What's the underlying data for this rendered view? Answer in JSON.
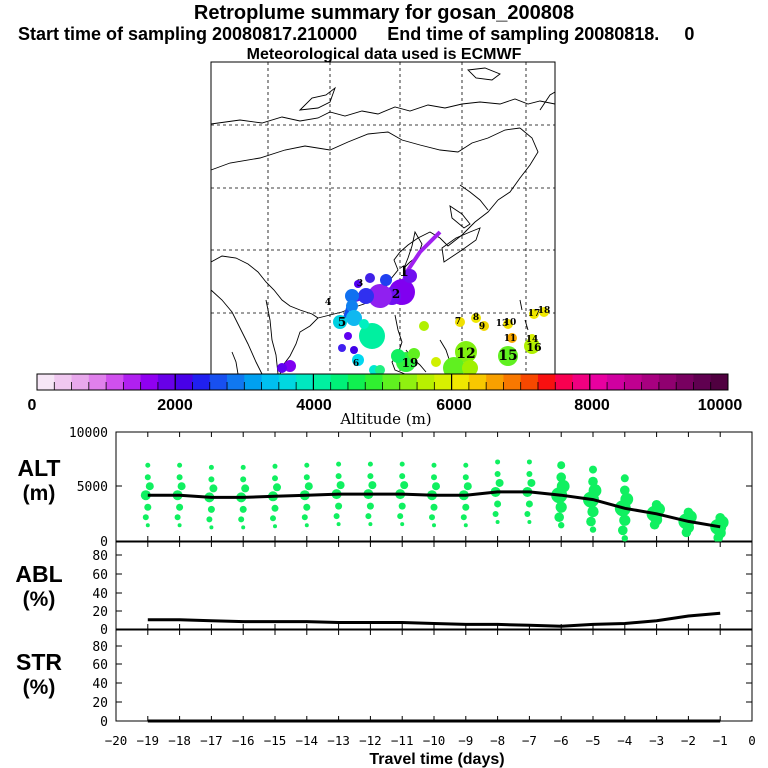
{
  "header": {
    "title": "Retroplume summary for gosan_200808",
    "start_label": "Start time of sampling 20080817.210000",
    "end_label": "End time of sampling 20080818.",
    "end_suffix": "0",
    "met_label": "Meteorological data used is ECMWF"
  },
  "map": {
    "labels": [
      {
        "t": "1"
      },
      {
        "t": "2"
      },
      {
        "t": "3"
      },
      {
        "t": "4"
      },
      {
        "t": "5"
      },
      {
        "t": "6"
      },
      {
        "t": "7"
      },
      {
        "t": "8"
      },
      {
        "t": "9"
      },
      {
        "t": "10"
      },
      {
        "t": "11"
      },
      {
        "t": "12"
      },
      {
        "t": "13"
      },
      {
        "t": "14"
      },
      {
        "t": "15"
      },
      {
        "t": "16"
      },
      {
        "t": "17"
      },
      {
        "t": "18"
      },
      {
        "t": "19"
      }
    ]
  },
  "colorbar": {
    "ticks": [
      "0",
      "2000",
      "4000",
      "6000",
      "8000",
      "10000"
    ],
    "title": "Altitude  (m)",
    "colors": [
      "#f6e6f6",
      "#f0c8f0",
      "#e8a8ec",
      "#e080ec",
      "#d050ee",
      "#b020f0",
      "#9000f0",
      "#6800e8",
      "#4800e8",
      "#2020f0",
      "#1850f0",
      "#1078f0",
      "#00a0f0",
      "#00c0f0",
      "#00d8e0",
      "#00e8c0",
      "#00f0a0",
      "#00f078",
      "#10f050",
      "#30f030",
      "#60f020",
      "#90f010",
      "#b8f000",
      "#d8f000",
      "#f0e800",
      "#f8c800",
      "#f8a000",
      "#f87800",
      "#f84800",
      "#f81010",
      "#f80050",
      "#f00080",
      "#e800a0",
      "#d000a0",
      "#c00090",
      "#a80080",
      "#900070",
      "#780060",
      "#600050",
      "#500040"
    ]
  },
  "chart_data": [
    {
      "type": "line",
      "name": "ALT",
      "ylabel": "ALT\n(m)",
      "ylim": [
        0,
        10000
      ],
      "yticks": [
        "10000",
        "5000",
        "0"
      ],
      "x": [
        -19,
        -18,
        -17,
        -16,
        -15,
        -14,
        -13,
        -12,
        -11,
        -10,
        -9,
        -8,
        -7,
        -6,
        -5,
        -4,
        -3,
        -2,
        -1
      ],
      "values": [
        4200,
        4200,
        4000,
        4000,
        4100,
        4200,
        4300,
        4300,
        4300,
        4200,
        4200,
        4500,
        4500,
        4200,
        3800,
        3000,
        2500,
        1800,
        1300
      ]
    },
    {
      "type": "line",
      "name": "ABL",
      "ylabel": "ABL\n(%)",
      "ylim": [
        0,
        90
      ],
      "yticks": [
        "80",
        "60",
        "40",
        "20",
        "0"
      ],
      "x": [
        -19,
        -18,
        -17,
        -16,
        -15,
        -14,
        -13,
        -12,
        -11,
        -10,
        -9,
        -8,
        -7,
        -6,
        -5,
        -4,
        -3,
        -2,
        -1
      ],
      "values": [
        10,
        10,
        9,
        8,
        8,
        8,
        7,
        7,
        7,
        6,
        5,
        5,
        4,
        3,
        5,
        6,
        9,
        14,
        17
      ]
    },
    {
      "type": "line",
      "name": "STR",
      "ylabel": "STR\n(%)",
      "ylim": [
        0,
        90
      ],
      "yticks": [
        "80",
        "60",
        "40",
        "20",
        "0"
      ],
      "x": [
        -19,
        -18,
        -17,
        -16,
        -15,
        -14,
        -13,
        -12,
        -11,
        -10,
        -9,
        -8,
        -7,
        -6,
        -5,
        -4,
        -3,
        -2,
        -1
      ],
      "values": [
        0,
        0,
        0,
        0,
        0,
        0,
        0,
        0,
        0,
        0,
        0,
        0,
        0,
        0,
        0,
        0,
        0,
        0,
        0
      ]
    }
  ],
  "xaxis": {
    "label": "Travel time (days)",
    "ticks": [
      "−20",
      "−19",
      "−18",
      "−17",
      "−16",
      "−15",
      "−14",
      "−13",
      "−12",
      "−11",
      "−10",
      "−9",
      "−8",
      "−7",
      "−6",
      "−5",
      "−4",
      "−3",
      "−2",
      "−1",
      "0"
    ],
    "xlim": [
      -20,
      0
    ]
  },
  "point_color": "#10f060",
  "line_color": "#000000"
}
